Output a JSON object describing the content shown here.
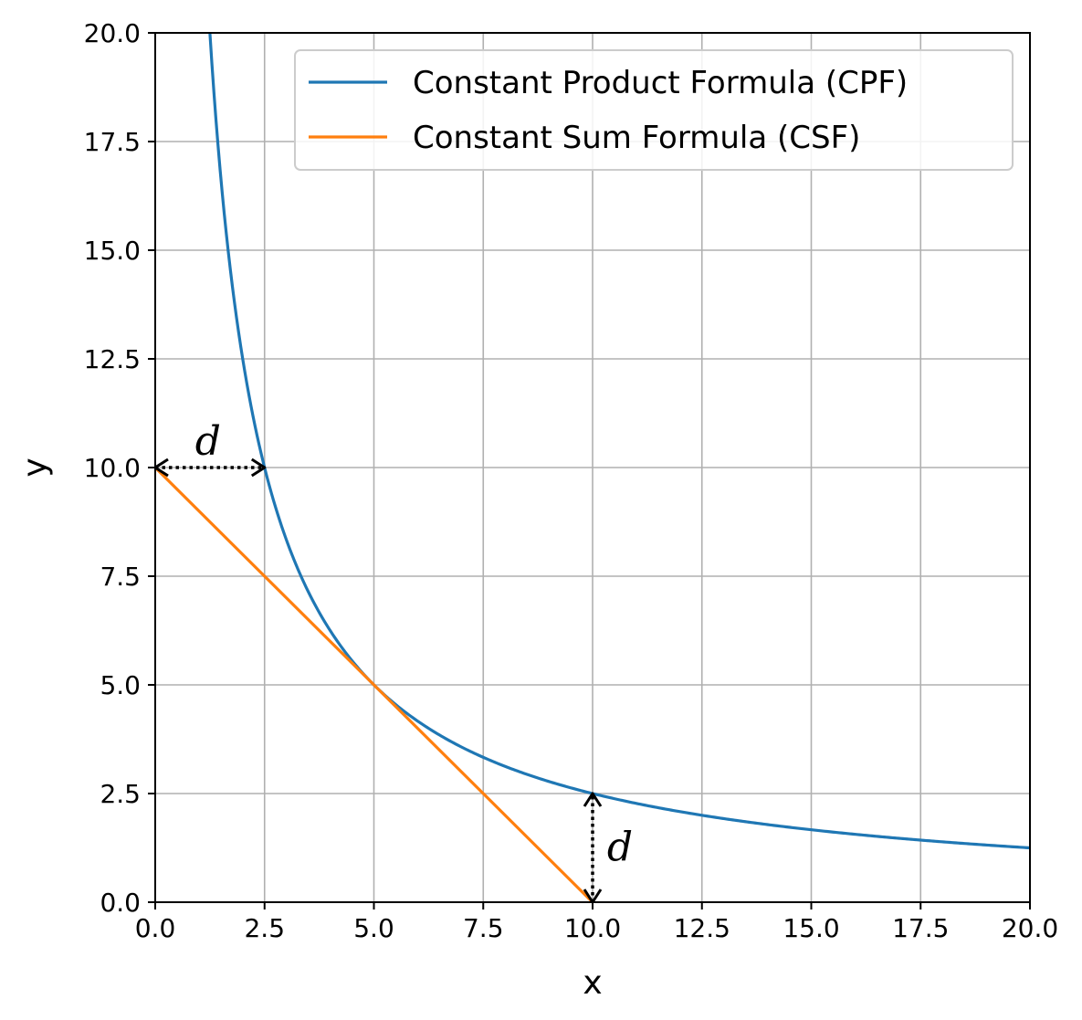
{
  "chart_data": {
    "type": "line",
    "title": "",
    "xlabel": "x",
    "ylabel": "y",
    "xlim": [
      0,
      20
    ],
    "ylim": [
      0,
      20
    ],
    "xticks": [
      "0.0",
      "2.5",
      "5.0",
      "7.5",
      "10.0",
      "12.5",
      "15.0",
      "17.5",
      "20.0"
    ],
    "yticks": [
      "0.0",
      "2.5",
      "5.0",
      "7.5",
      "10.0",
      "12.5",
      "15.0",
      "17.5",
      "20.0"
    ],
    "grid": true,
    "legend_position": "top-right",
    "series": [
      {
        "name": "Constant Product Formula (CPF)",
        "color": "#1f77b4",
        "x": [
          1.25,
          1.5,
          1.75,
          2.0,
          2.25,
          2.5,
          3.0,
          3.5,
          4.0,
          4.5,
          5.0,
          6.0,
          7.0,
          8.0,
          9.0,
          10.0,
          11.0,
          12.5,
          14.0,
          15.0,
          16.0,
          17.5,
          19.0,
          20.0
        ],
        "y": [
          20.0,
          16.67,
          14.29,
          12.5,
          11.11,
          10.0,
          8.33,
          7.14,
          6.25,
          5.56,
          5.0,
          4.17,
          3.57,
          3.13,
          2.78,
          2.5,
          2.27,
          2.0,
          1.79,
          1.67,
          1.56,
          1.43,
          1.32,
          1.25
        ]
      },
      {
        "name": "Constant Sum Formula (CSF)",
        "color": "#ff7f0e",
        "x": [
          0,
          10
        ],
        "y": [
          10,
          0
        ]
      }
    ],
    "annotations": [
      {
        "text": "d",
        "from": [
          0,
          10
        ],
        "to": [
          2.5,
          10
        ],
        "style": "dotted-double-arrow"
      },
      {
        "text": "d",
        "from": [
          10,
          0
        ],
        "to": [
          10,
          2.5
        ],
        "style": "dotted-double-arrow"
      }
    ]
  }
}
